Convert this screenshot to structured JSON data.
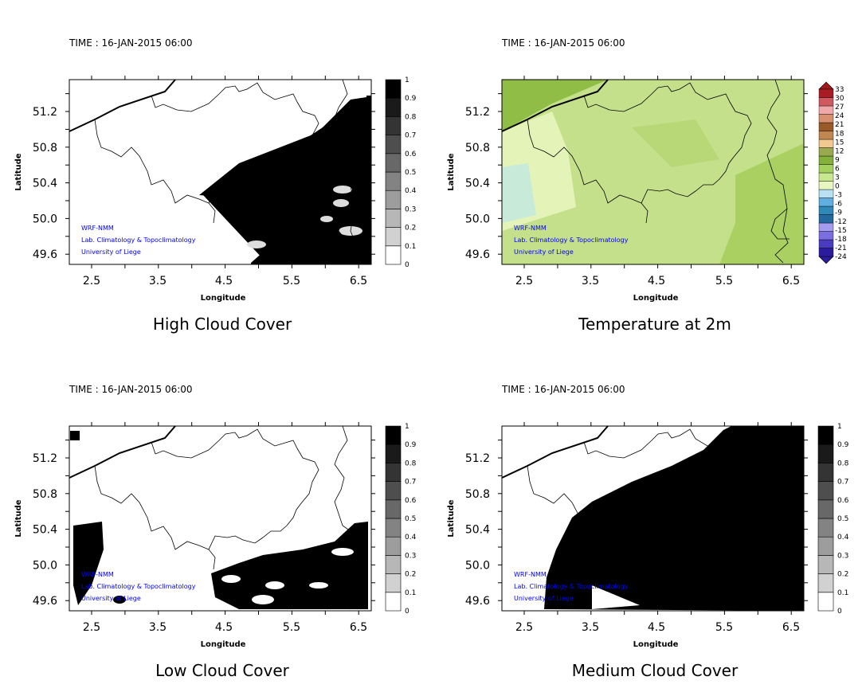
{
  "chart_data": [
    {
      "type": "heatmap",
      "title": "High Cloud Cover",
      "time_label": "TIME : 16-JAN-2015 06:00",
      "xlabel": "Longitude",
      "ylabel": "Latitude",
      "xticks": [
        "2.5",
        "3.5",
        "4.5",
        "5.5",
        "6.5"
      ],
      "yticks": [
        "51.2",
        "50.8",
        "50.4",
        "50.0",
        "49.6"
      ],
      "xlim": [
        2.17,
        6.69
      ],
      "ylim": [
        49.48,
        51.56
      ],
      "colorbar": {
        "labels": [
          "0",
          "0.1",
          "0.2",
          "0.3",
          "0.4",
          "0.5",
          "0.6",
          "0.7",
          "0.8",
          "0.9",
          "1"
        ]
      },
      "credits": [
        "WRF-NMM",
        "Lab. Climatology & Topoclimatology",
        "University of Liege"
      ]
    },
    {
      "type": "heatmap",
      "title": "Temperature at 2m",
      "time_label": "TIME : 16-JAN-2015 06:00",
      "xlabel": "Longitude",
      "ylabel": "Latitude",
      "xticks": [
        "2.5",
        "3.5",
        "4.5",
        "5.5",
        "6.5"
      ],
      "yticks": [
        "51.2",
        "50.8",
        "50.4",
        "50.0",
        "49.6"
      ],
      "xlim": [
        2.17,
        6.69
      ],
      "ylim": [
        49.48,
        51.56
      ],
      "colorbar": {
        "labels": [
          "-24",
          "-21",
          "-18",
          "-15",
          "-12",
          "-9",
          "-6",
          "-3",
          "0",
          "3",
          "6",
          "9",
          "12",
          "15",
          "18",
          "21",
          "24",
          "27",
          "30",
          "33"
        ]
      },
      "credits": [
        "WRF-NMM",
        "Lab. Climatology & Topoclimatology",
        "University of Liege"
      ]
    },
    {
      "type": "heatmap",
      "title": "Low Cloud Cover",
      "time_label": "TIME : 16-JAN-2015 06:00",
      "xlabel": "Longitude",
      "ylabel": "Latitude",
      "xticks": [
        "2.5",
        "3.5",
        "4.5",
        "5.5",
        "6.5"
      ],
      "yticks": [
        "51.2",
        "50.8",
        "50.4",
        "50.0",
        "49.6"
      ],
      "xlim": [
        2.17,
        6.69
      ],
      "ylim": [
        49.48,
        51.56
      ],
      "colorbar": {
        "labels": [
          "0",
          "0.1",
          "0.2",
          "0.3",
          "0.4",
          "0.5",
          "0.6",
          "0.7",
          "0.8",
          "0.9",
          "1"
        ]
      },
      "credits": [
        "WRF-NMM",
        "Lab. Climatology & Topoclimatology",
        "University of Liege"
      ]
    },
    {
      "type": "heatmap",
      "title": "Medium Cloud Cover",
      "time_label": "TIME : 16-JAN-2015 06:00",
      "xlabel": "Longitude",
      "ylabel": "Latitude",
      "xticks": [
        "2.5",
        "3.5",
        "4.5",
        "5.5",
        "6.5"
      ],
      "yticks": [
        "51.2",
        "50.8",
        "50.4",
        "50.0",
        "49.6"
      ],
      "xlim": [
        2.17,
        6.69
      ],
      "ylim": [
        49.48,
        51.56
      ],
      "colorbar": {
        "labels": [
          "0",
          "0.1",
          "0.2",
          "0.3",
          "0.4",
          "0.5",
          "0.6",
          "0.7",
          "0.8",
          "0.9",
          "1"
        ]
      },
      "credits": [
        "WRF-NMM",
        "Lab. Climatology & Topoclimatology",
        "University of Liege"
      ]
    }
  ],
  "colors": {
    "credit": "#0000ff",
    "cloud": "#000000",
    "temp_main": "#c5e08a",
    "temp_dark": "#8fbd45",
    "temp_light": "#e4f3b8"
  }
}
